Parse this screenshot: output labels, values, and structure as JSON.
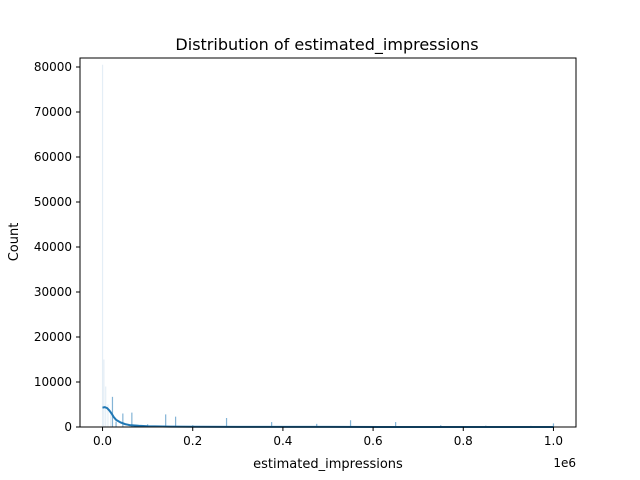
{
  "chart_data": {
    "type": "bar",
    "title": "Distribution of estimated_impressions",
    "xlabel": "estimated_impressions",
    "ylabel": "Count",
    "x_offset_label": "1e6",
    "xlim": [
      -0.05,
      1.05
    ],
    "ylim": [
      0,
      82000
    ],
    "x_ticks": [
      0.0,
      0.2,
      0.4,
      0.6,
      0.8,
      1.0
    ],
    "x_tick_labels": [
      "0.0",
      "0.2",
      "0.4",
      "0.6",
      "0.8",
      "1.0"
    ],
    "y_ticks": [
      0,
      10000,
      20000,
      30000,
      40000,
      50000,
      60000,
      70000,
      80000
    ],
    "y_tick_labels": [
      "0",
      "10000",
      "20000",
      "30000",
      "40000",
      "50000",
      "60000",
      "70000",
      "80000"
    ],
    "histogram_bins": [
      {
        "x": 0.0,
        "count": 80500,
        "faint": true
      },
      {
        "x": 0.003,
        "count": 15000,
        "faint": true
      },
      {
        "x": 0.007,
        "count": 9000,
        "faint": true
      },
      {
        "x": 0.012,
        "count": 5000,
        "faint": true
      },
      {
        "x": 0.018,
        "count": 3500,
        "faint": true
      },
      {
        "x": 0.022,
        "count": 6700,
        "faint": false
      },
      {
        "x": 0.03,
        "count": 1200,
        "faint": false
      },
      {
        "x": 0.045,
        "count": 3000,
        "faint": false
      },
      {
        "x": 0.065,
        "count": 3200,
        "faint": false
      },
      {
        "x": 0.1,
        "count": 600,
        "faint": false
      },
      {
        "x": 0.14,
        "count": 2800,
        "faint": false
      },
      {
        "x": 0.162,
        "count": 2300,
        "faint": false
      },
      {
        "x": 0.2,
        "count": 400,
        "faint": false
      },
      {
        "x": 0.275,
        "count": 2000,
        "faint": false
      },
      {
        "x": 0.375,
        "count": 1100,
        "faint": false
      },
      {
        "x": 0.475,
        "count": 700,
        "faint": false
      },
      {
        "x": 0.55,
        "count": 1500,
        "faint": false
      },
      {
        "x": 0.65,
        "count": 1100,
        "faint": false
      },
      {
        "x": 0.75,
        "count": 400,
        "faint": false
      },
      {
        "x": 0.85,
        "count": 300,
        "faint": false
      },
      {
        "x": 0.95,
        "count": 250,
        "faint": false
      },
      {
        "x": 1.0,
        "count": 800,
        "faint": false
      }
    ],
    "kde": {
      "x": [
        0.0,
        0.005,
        0.01,
        0.015,
        0.02,
        0.025,
        0.03,
        0.04,
        0.05,
        0.06,
        0.08,
        0.1,
        0.15,
        0.2,
        0.3,
        0.5,
        0.7,
        1.0
      ],
      "y": [
        4300,
        4400,
        4200,
        3700,
        3000,
        2200,
        1600,
        1000,
        650,
        430,
        260,
        180,
        100,
        60,
        30,
        15,
        10,
        5
      ]
    },
    "bar_color": "#1f77b4",
    "kde_color": "#1f77b4",
    "grid": false
  }
}
